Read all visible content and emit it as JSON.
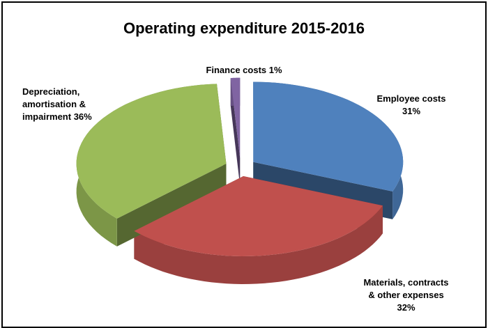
{
  "chart_data": {
    "type": "pie3d",
    "title": "Operating expenditure 2015-2016",
    "categories": [
      "Employee costs",
      "Materials, contracts & other expenses",
      "Depreciation, amortisation & impairment",
      "Finance costs"
    ],
    "values": [
      31,
      32,
      36,
      1
    ],
    "value_labels": [
      "31%",
      "32%",
      "36%",
      "1%"
    ],
    "colors": [
      "#4f81bd",
      "#c0504d",
      "#9bbb59",
      "#8064a2"
    ]
  }
}
